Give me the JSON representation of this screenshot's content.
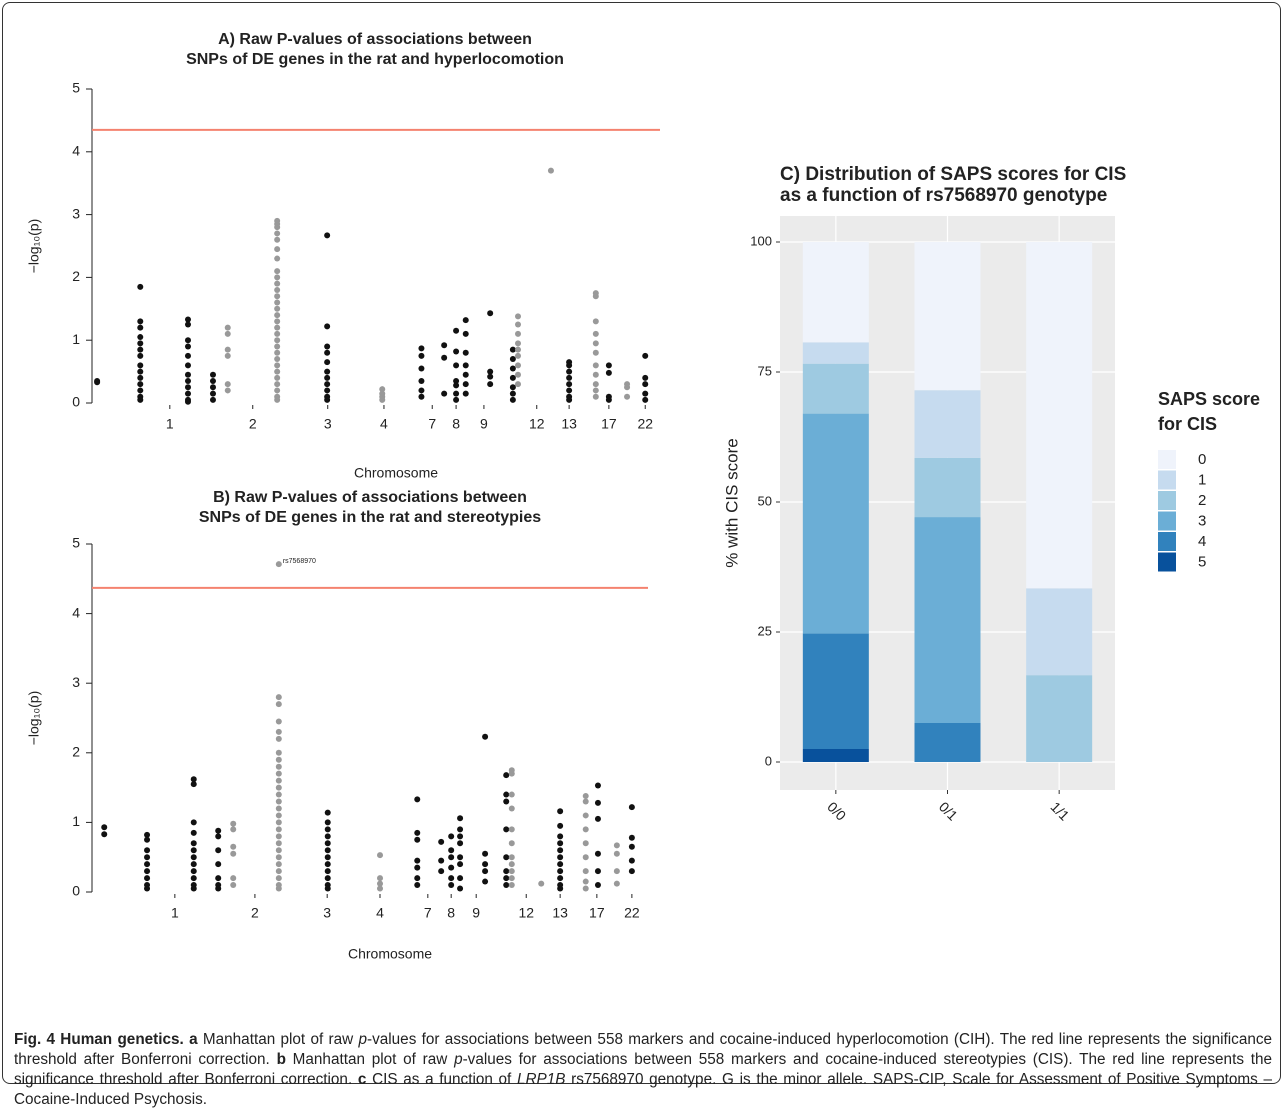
{
  "chart_data": [
    {
      "type": "manhattan",
      "title": [
        "A) Raw P-values of associations between",
        "SNPs of DE genes in the rat and hyperlocomotion"
      ],
      "xlabel": "Chromosome",
      "ylabel": "−log₁₀(p)",
      "ylim": [
        0,
        5
      ],
      "yticks": [
        0,
        1,
        2,
        3,
        4,
        5
      ],
      "xlim": [
        0,
        100
      ],
      "xticks": [
        {
          "value": 13.7,
          "label": "1"
        },
        {
          "value": 28.3,
          "label": "2"
        },
        {
          "value": 41.5,
          "label": "3"
        },
        {
          "value": 51.4,
          "label": "4"
        },
        {
          "value": 59.9,
          "label": "7"
        },
        {
          "value": 64.1,
          "label": "8"
        },
        {
          "value": 69.0,
          "label": "9"
        },
        {
          "value": 78.3,
          "label": "12"
        },
        {
          "value": 84.0,
          "label": "13"
        },
        {
          "value": 91.0,
          "label": "17"
        },
        {
          "value": 97.4,
          "label": "22"
        }
      ],
      "threshold": 4.35,
      "threshold_color": "#f4826f",
      "series": [
        {
          "x": 0.9,
          "color": "#111111",
          "values": [
            0.35,
            0.33
          ]
        },
        {
          "x": 8.5,
          "color": "#111111",
          "values": [
            1.85,
            1.3,
            1.2,
            1.05,
            0.95,
            0.85,
            0.75,
            0.6,
            0.5,
            0.4,
            0.3,
            0.2,
            0.1,
            0.05
          ]
        },
        {
          "x": 16.9,
          "color": "#111111",
          "values": [
            1.33,
            1.25,
            1.0,
            0.9,
            0.75,
            0.6,
            0.45,
            0.35,
            0.25,
            0.15,
            0.05,
            0.02
          ]
        },
        {
          "x": 21.3,
          "color": "#111111",
          "values": [
            0.45,
            0.35,
            0.25,
            0.15,
            0.05
          ]
        },
        {
          "x": 23.9,
          "color": "#999999",
          "values": [
            1.2,
            1.1,
            0.85,
            0.75,
            0.3,
            0.2
          ]
        },
        {
          "x": 32.6,
          "color": "#999999",
          "values": [
            2.9,
            2.85,
            2.8,
            2.7,
            2.6,
            2.45,
            2.3,
            2.1,
            2.0,
            1.9,
            1.8,
            1.7,
            1.6,
            1.5,
            1.4,
            1.3,
            1.2,
            1.1,
            1.0,
            0.9,
            0.8,
            0.7,
            0.6,
            0.5,
            0.4,
            0.3,
            0.2,
            0.1,
            0.05
          ]
        },
        {
          "x": 41.4,
          "color": "#111111",
          "values": [
            2.67,
            1.22,
            0.9,
            0.8,
            0.65,
            0.5,
            0.4,
            0.3,
            0.2,
            0.1,
            0.05
          ]
        },
        {
          "x": 51.1,
          "color": "#999999",
          "values": [
            0.22,
            0.15,
            0.1,
            0.05
          ]
        },
        {
          "x": 58.0,
          "color": "#111111",
          "values": [
            0.87,
            0.75,
            0.55,
            0.35,
            0.2,
            0.1
          ]
        },
        {
          "x": 62.0,
          "color": "#111111",
          "values": [
            0.92,
            0.72,
            0.15
          ]
        },
        {
          "x": 64.1,
          "color": "#111111",
          "values": [
            1.15,
            0.82,
            0.6,
            0.35,
            0.28,
            0.15,
            0.05
          ]
        },
        {
          "x": 65.8,
          "color": "#111111",
          "values": [
            1.32,
            1.1,
            0.8,
            0.6,
            0.45,
            0.3,
            0.15
          ]
        },
        {
          "x": 70.1,
          "color": "#111111",
          "values": [
            1.43,
            0.5,
            0.42,
            0.3
          ]
        },
        {
          "x": 74.1,
          "color": "#111111",
          "values": [
            0.85,
            0.7,
            0.55,
            0.4,
            0.25,
            0.15,
            0.05
          ]
        },
        {
          "x": 75.0,
          "color": "#999999",
          "values": [
            1.38,
            1.25,
            1.1,
            0.95,
            0.85,
            0.75,
            0.6,
            0.45,
            0.3
          ]
        },
        {
          "x": 80.8,
          "color": "#999999",
          "values": [
            3.7
          ]
        },
        {
          "x": 84.0,
          "color": "#111111",
          "values": [
            0.65,
            0.6,
            0.5,
            0.4,
            0.3,
            0.2,
            0.1,
            0.05
          ]
        },
        {
          "x": 88.7,
          "color": "#999999",
          "values": [
            1.75,
            1.7,
            1.3,
            1.1,
            0.95,
            0.8,
            0.6,
            0.45,
            0.3,
            0.2,
            0.1
          ]
        },
        {
          "x": 91.0,
          "color": "#111111",
          "values": [
            0.6,
            0.48,
            0.1,
            0.05
          ]
        },
        {
          "x": 94.2,
          "color": "#999999",
          "values": [
            0.3,
            0.25,
            0.1
          ]
        },
        {
          "x": 97.4,
          "color": "#111111",
          "values": [
            0.75,
            0.4,
            0.3,
            0.15,
            0.05
          ]
        }
      ]
    },
    {
      "type": "manhattan",
      "title": [
        "B) Raw P-values of associations between",
        "SNPs of DE genes in the rat and stereotypies"
      ],
      "xlabel": "Chromosome",
      "ylabel": "−log₁₀(p)",
      "ylim": [
        0,
        5
      ],
      "yticks": [
        0,
        1,
        2,
        3,
        4,
        5
      ],
      "xlim": [
        0,
        100
      ],
      "xticks": [
        {
          "value": 14.9,
          "label": "1"
        },
        {
          "value": 29.3,
          "label": "2"
        },
        {
          "value": 42.3,
          "label": "3"
        },
        {
          "value": 51.8,
          "label": "4"
        },
        {
          "value": 60.4,
          "label": "7"
        },
        {
          "value": 64.6,
          "label": "8"
        },
        {
          "value": 69.1,
          "label": "9"
        },
        {
          "value": 78.1,
          "label": "12"
        },
        {
          "value": 84.2,
          "label": "13"
        },
        {
          "value": 90.8,
          "label": "17"
        },
        {
          "value": 97.1,
          "label": "22"
        }
      ],
      "threshold": 4.37,
      "threshold_color": "#f4826f",
      "annotation": "rs7568970",
      "series": [
        {
          "x": 2.2,
          "color": "#111111",
          "values": [
            0.93,
            0.83
          ]
        },
        {
          "x": 9.9,
          "color": "#111111",
          "values": [
            0.82,
            0.75,
            0.6,
            0.5,
            0.4,
            0.3,
            0.2,
            0.1,
            0.05
          ]
        },
        {
          "x": 18.3,
          "color": "#111111",
          "values": [
            1.62,
            1.55,
            1.0,
            0.85,
            0.7,
            0.6,
            0.5,
            0.4,
            0.3,
            0.2,
            0.1,
            0.05
          ]
        },
        {
          "x": 22.7,
          "color": "#111111",
          "values": [
            0.88,
            0.8,
            0.6,
            0.4,
            0.2,
            0.1,
            0.05
          ]
        },
        {
          "x": 25.4,
          "color": "#999999",
          "values": [
            0.98,
            0.9,
            0.65,
            0.55,
            0.2,
            0.1
          ]
        },
        {
          "x": 33.6,
          "color": "#999999",
          "values": [
            4.71,
            2.8,
            2.7,
            2.45,
            2.3,
            2.2,
            2.0,
            1.9,
            1.8,
            1.7,
            1.6,
            1.5,
            1.4,
            1.3,
            1.2,
            1.1,
            1.0,
            0.9,
            0.8,
            0.7,
            0.6,
            0.5,
            0.4,
            0.3,
            0.2,
            0.1,
            0.05
          ]
        },
        {
          "x": 42.4,
          "color": "#111111",
          "values": [
            1.14,
            1.0,
            0.9,
            0.8,
            0.7,
            0.6,
            0.5,
            0.4,
            0.3,
            0.2,
            0.1,
            0.05
          ]
        },
        {
          "x": 51.8,
          "color": "#999999",
          "values": [
            0.53,
            0.2,
            0.12,
            0.05
          ]
        },
        {
          "x": 58.5,
          "color": "#111111",
          "values": [
            1.33,
            0.85,
            0.75,
            0.45,
            0.35,
            0.2,
            0.1
          ]
        },
        {
          "x": 62.8,
          "color": "#111111",
          "values": [
            0.72,
            0.45,
            0.3
          ]
        },
        {
          "x": 64.6,
          "color": "#111111",
          "values": [
            0.8,
            0.6,
            0.5,
            0.35,
            0.2,
            0.1
          ]
        },
        {
          "x": 66.2,
          "color": "#111111",
          "values": [
            1.06,
            0.9,
            0.8,
            0.7,
            0.5,
            0.4,
            0.2,
            0.05
          ]
        },
        {
          "x": 70.7,
          "color": "#111111",
          "values": [
            2.23,
            0.55,
            0.4,
            0.3,
            0.15
          ]
        },
        {
          "x": 74.5,
          "color": "#111111",
          "values": [
            1.68,
            1.4,
            1.3,
            0.9,
            0.5,
            0.3,
            0.2,
            0.1
          ]
        },
        {
          "x": 75.5,
          "color": "#999999",
          "values": [
            1.75,
            1.7,
            1.4,
            1.2,
            0.9,
            0.7,
            0.5,
            0.4,
            0.3,
            0.2,
            0.1
          ]
        },
        {
          "x": 80.8,
          "color": "#999999",
          "values": [
            0.12
          ]
        },
        {
          "x": 84.2,
          "color": "#111111",
          "values": [
            1.16,
            0.95,
            0.8,
            0.7,
            0.6,
            0.5,
            0.4,
            0.3,
            0.2,
            0.1,
            0.05
          ]
        },
        {
          "x": 88.8,
          "color": "#999999",
          "values": [
            1.38,
            1.3,
            1.1,
            0.9,
            0.7,
            0.5,
            0.3,
            0.15,
            0.05
          ]
        },
        {
          "x": 91.0,
          "color": "#111111",
          "values": [
            1.53,
            1.28,
            1.05,
            0.55,
            0.3,
            0.1
          ]
        },
        {
          "x": 94.4,
          "color": "#999999",
          "values": [
            0.67,
            0.55,
            0.3,
            0.12
          ]
        },
        {
          "x": 97.1,
          "color": "#111111",
          "values": [
            1.22,
            0.78,
            0.65,
            0.45,
            0.3
          ]
        }
      ]
    },
    {
      "type": "stacked_bar",
      "title": [
        "C) Distribution of SAPS scores for CIS",
        "as a function of rs7568970 genotype"
      ],
      "ylabel": "% with CIS score",
      "categories": [
        "0/0",
        "0/1",
        "1/1"
      ],
      "ylim": [
        0,
        100
      ],
      "yticks": [
        0,
        25,
        50,
        75,
        100
      ],
      "legend_title": [
        "SAPS score",
        "for CIS"
      ],
      "legend": "right",
      "series": [
        {
          "name": "0",
          "color": "#eff3fb",
          "values": [
            19.3,
            28.5,
            66.6
          ]
        },
        {
          "name": "1",
          "color": "#c6dbef",
          "values": [
            4.1,
            13.0,
            16.7
          ]
        },
        {
          "name": "2",
          "color": "#9ecae1",
          "values": [
            9.6,
            11.4,
            16.7
          ]
        },
        {
          "name": "3",
          "color": "#6baed6",
          "values": [
            42.3,
            39.6,
            0
          ]
        },
        {
          "name": "4",
          "color": "#3182bd",
          "values": [
            22.2,
            7.5,
            0
          ]
        },
        {
          "name": "5",
          "color": "#08519c",
          "values": [
            2.5,
            0,
            0
          ]
        }
      ]
    }
  ],
  "caption": [
    {
      "text": "Fig. 4 Human genetics.",
      "style": "bold"
    },
    {
      "text": " ",
      "style": "normal"
    },
    {
      "text": "a",
      "style": "bold"
    },
    {
      "text": " Manhattan plot of raw ",
      "style": "normal"
    },
    {
      "text": "p",
      "style": "italic"
    },
    {
      "text": "-values for associations between 558 markers and cocaine-induced hyperlocomotion (CIH). The red line represents the significance threshold after Bonferroni correction. ",
      "style": "normal"
    },
    {
      "text": "b",
      "style": "bold"
    },
    {
      "text": " Manhattan plot of raw ",
      "style": "normal"
    },
    {
      "text": "p",
      "style": "italic"
    },
    {
      "text": "-values for associations between 558 markers and cocaine-induced stereotypies (CIS). The red line represents the significance threshold after Bonferroni correction. ",
      "style": "normal"
    },
    {
      "text": "c",
      "style": "bold"
    },
    {
      "text": " CIS as a function of ",
      "style": "normal"
    },
    {
      "text": "LRP1B",
      "style": "italic"
    },
    {
      "text": " rs7568970 genotype. G is the minor allele. SAPS-CIP, Scale for Assessment of Positive Symptoms – Cocaine-Induced Psychosis.",
      "style": "normal"
    }
  ]
}
